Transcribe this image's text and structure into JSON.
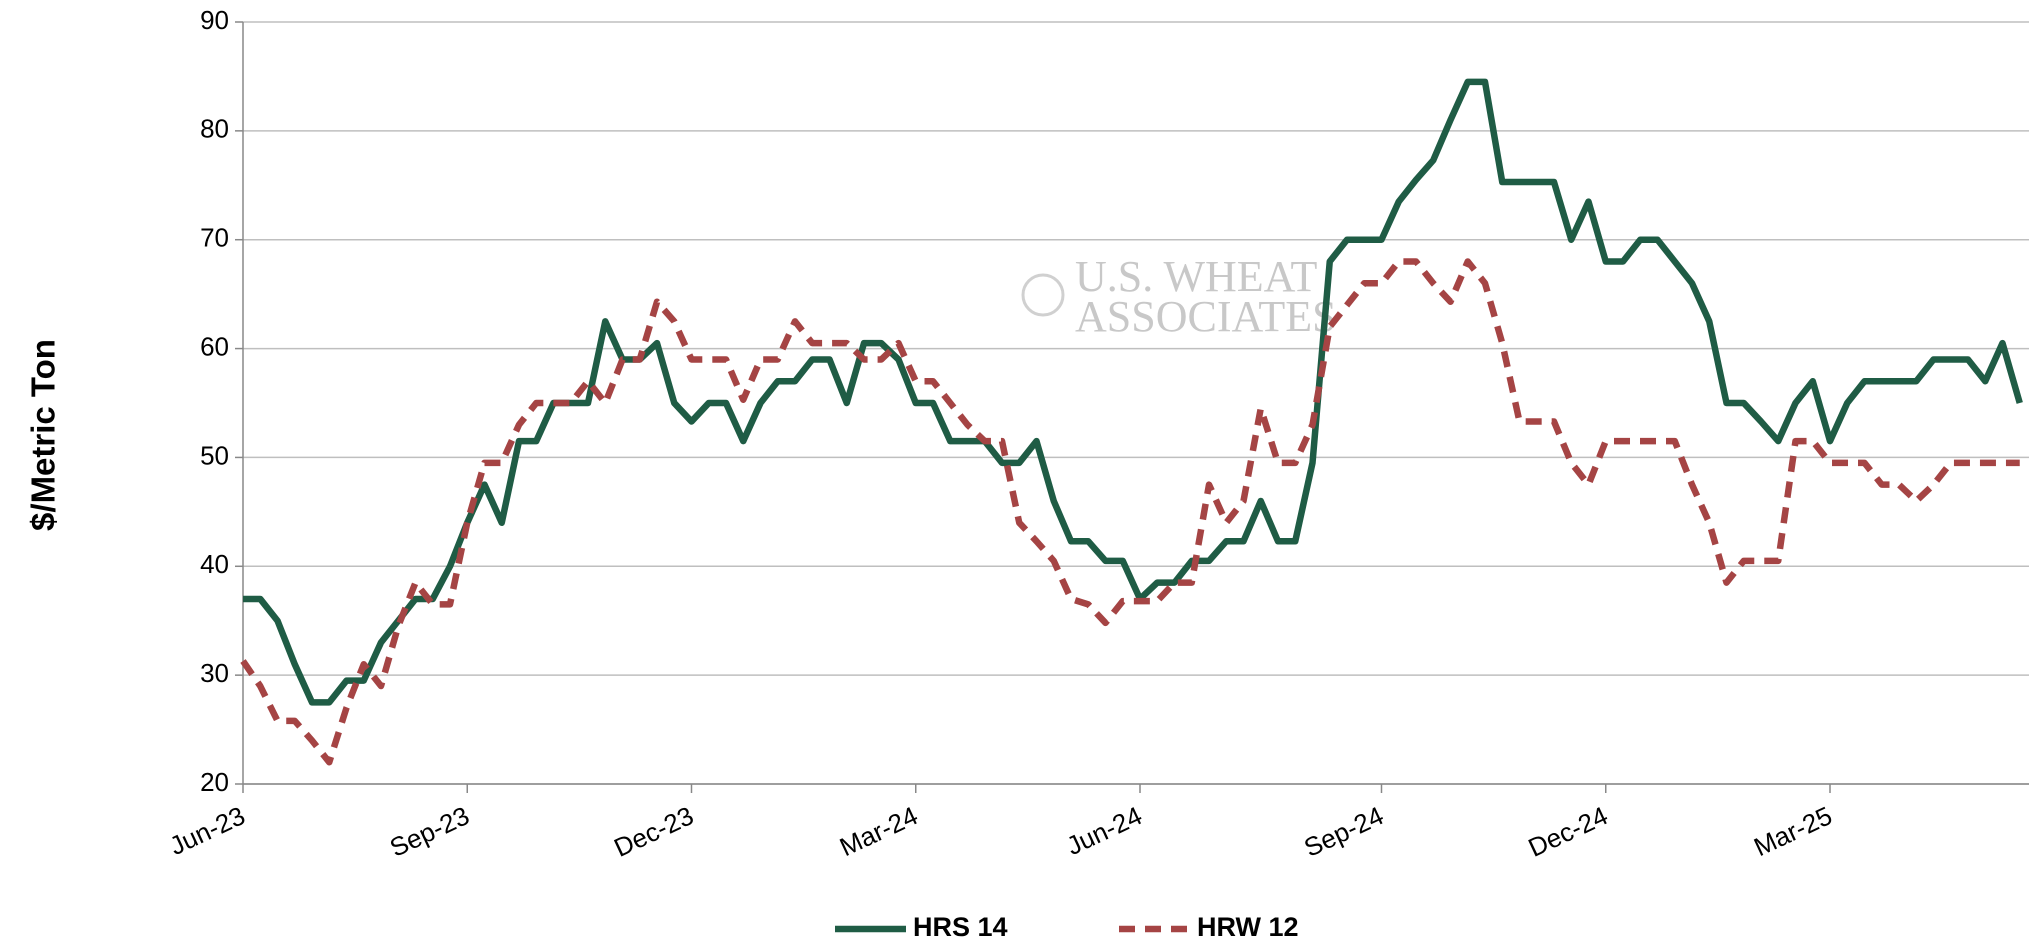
{
  "chart_data": {
    "type": "line",
    "y_label": "$/Metric Ton",
    "watermark": [
      "U.S. WHEAT",
      "ASSOCIATES"
    ],
    "categories": [
      "Jun-23",
      null,
      null,
      null,
      null,
      null,
      null,
      null,
      null,
      null,
      null,
      null,
      null,
      "Sep-23",
      null,
      null,
      null,
      null,
      null,
      null,
      null,
      null,
      null,
      null,
      null,
      null,
      "Dec-23",
      null,
      null,
      null,
      null,
      null,
      null,
      null,
      null,
      null,
      null,
      null,
      null,
      "Mar-24",
      null,
      null,
      null,
      null,
      null,
      null,
      null,
      null,
      null,
      null,
      null,
      null,
      "Jun-24",
      null,
      null,
      null,
      null,
      null,
      null,
      null,
      null,
      null,
      null,
      null,
      null,
      null,
      "Sep-24",
      null,
      null,
      null,
      null,
      null,
      null,
      null,
      null,
      null,
      null,
      null,
      null,
      "Dec-24",
      null,
      null,
      null,
      null,
      null,
      null,
      null,
      null,
      null,
      null,
      null,
      null,
      "Mar-25",
      null,
      null,
      null,
      null,
      null,
      null,
      null,
      null,
      null,
      null,
      null
    ],
    "series": [
      {
        "name": "HRS 14",
        "color": "#1f5c45",
        "dashed": false,
        "values": [
          37,
          37,
          35,
          31,
          27.5,
          27.5,
          29.5,
          29.5,
          33,
          35,
          37,
          37,
          40,
          44,
          47.5,
          44,
          51.5,
          51.5,
          55,
          55,
          55,
          62.5,
          59,
          59,
          60.5,
          55,
          53.3,
          55,
          55,
          51.5,
          55,
          57,
          57,
          59,
          59,
          55,
          60.5,
          60.5,
          59,
          55,
          55,
          51.5,
          51.5,
          51.5,
          49.5,
          49.5,
          51.5,
          46,
          42.3,
          42.3,
          40.5,
          40.5,
          37,
          38.5,
          38.5,
          40.5,
          40.5,
          42.3,
          42.3,
          46,
          42.3,
          42.3,
          49.5,
          68,
          70,
          70,
          70,
          73.5,
          75.5,
          77.3,
          81,
          84.5,
          84.5,
          75.3,
          75.3,
          75.3,
          75.3,
          70,
          73.5,
          68,
          68,
          70,
          70,
          68,
          66,
          62.5,
          55,
          55,
          53.3,
          51.5,
          55,
          57,
          51.5,
          55,
          57,
          57,
          57,
          57,
          59,
          59,
          59,
          57,
          60.5,
          55
        ]
      },
      {
        "name": "HRW 12",
        "color": "#a54444",
        "dashed": true,
        "values": [
          31.3,
          29,
          25.8,
          25.8,
          24,
          22,
          27,
          31,
          29,
          34.5,
          38.5,
          36.5,
          36.5,
          44,
          49.5,
          49.5,
          53,
          55,
          55,
          55,
          57,
          55,
          59,
          59,
          64.3,
          62.5,
          59,
          59,
          59,
          55.3,
          59,
          59,
          62.5,
          60.5,
          60.5,
          60.5,
          59,
          59,
          60.5,
          57,
          57,
          55,
          53,
          51.5,
          51.5,
          44,
          42.3,
          40.5,
          37,
          36.5,
          34.8,
          36.8,
          36.8,
          36.8,
          38.5,
          38.5,
          47.5,
          44,
          46,
          54.5,
          49.5,
          49.5,
          53,
          62,
          64,
          66,
          66,
          68,
          68,
          66,
          64.3,
          68,
          66,
          60.5,
          53.3,
          53.3,
          53.3,
          49.5,
          47.5,
          51.5,
          51.5,
          51.5,
          51.5,
          51.5,
          47.5,
          44,
          38.5,
          40.5,
          40.5,
          40.5,
          51.5,
          51.5,
          49.5,
          49.5,
          49.5,
          47.5,
          47.5,
          46,
          47.5,
          49.5,
          49.5,
          49.5,
          49.5,
          49.5
        ]
      }
    ],
    "ylim": [
      20,
      90
    ],
    "yticks": [
      20,
      30,
      40,
      50,
      60,
      70,
      80,
      90
    ],
    "grid": true,
    "legend": "bottom"
  }
}
